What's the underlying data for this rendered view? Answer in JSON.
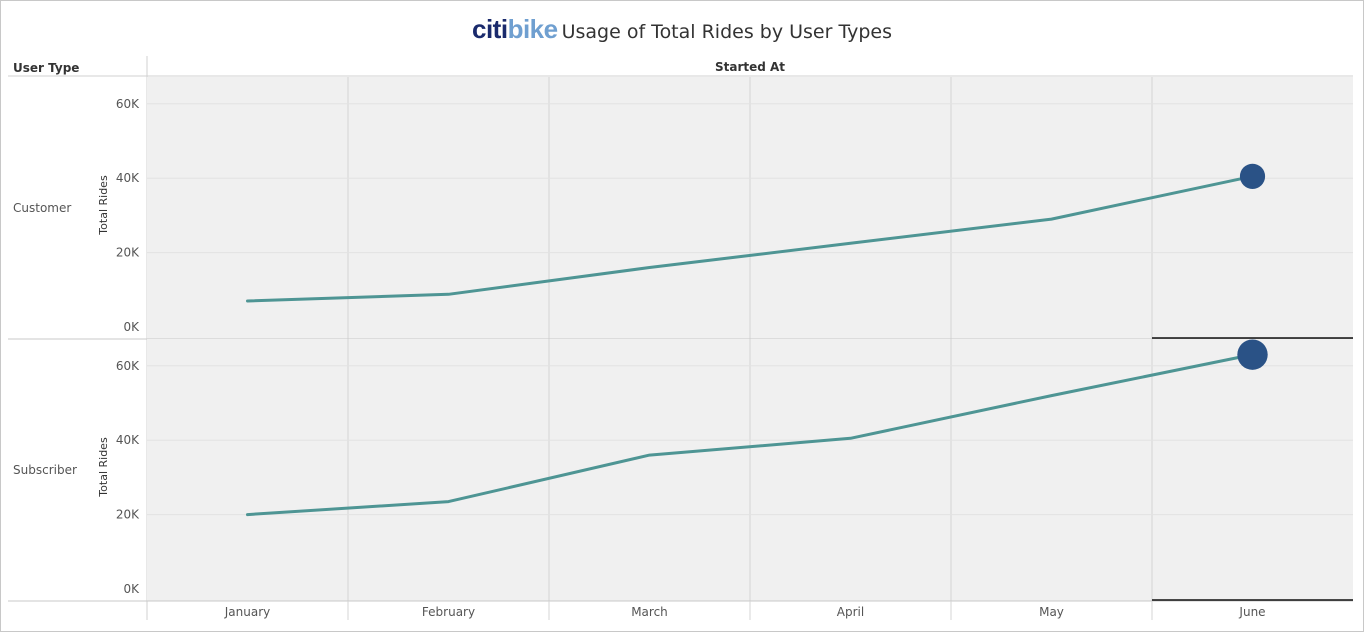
{
  "title": {
    "brand_citi": "citi",
    "brand_bike": "bike",
    "text": "Usage of Total Rides by User Types"
  },
  "headers": {
    "row": "User Type",
    "column": "Started At"
  },
  "colors": {
    "line": "#4e9594",
    "marker": "#2a5286",
    "pane_background": "#f0f0f0",
    "brand_dark": "#1a2a6c",
    "brand_light": "#6f9fd0"
  },
  "chart_data": {
    "type": "line",
    "categories": [
      "January",
      "February",
      "March",
      "April",
      "May",
      "June"
    ],
    "ylabel": "Total Rides",
    "yticks": [
      "0K",
      "20K",
      "40K",
      "60K"
    ],
    "ylim": [
      0,
      70000
    ],
    "grid": true,
    "highlight": "last-point marker",
    "panels": [
      {
        "name": "Customer",
        "values": [
          7000,
          8800,
          16000,
          22500,
          29000,
          40500
        ]
      },
      {
        "name": "Subscriber",
        "values": [
          20000,
          23500,
          36000,
          40500,
          52000,
          63000
        ]
      }
    ]
  }
}
